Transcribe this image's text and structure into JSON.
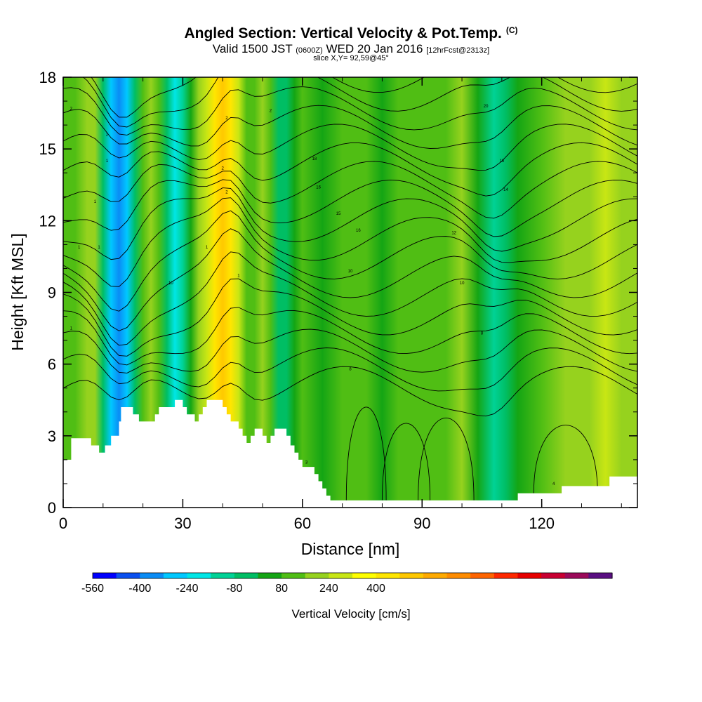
{
  "header": {
    "title": "Angled Section: Vertical Velocity & Pot.Temp.",
    "title_suffix": "(C)",
    "valid_prefix": "Valid 1500 JST",
    "valid_utc": "(0600Z)",
    "valid_date": "WED 20 Jan 2016",
    "forecast": "[12hrFcst@2313z]",
    "slice": "slice X,Y= 92,59@45°"
  },
  "chart_data": {
    "type": "heatmap",
    "xlabel": "Distance [nm]",
    "ylabel": "Height [Kft MSL]",
    "xlim": [
      0,
      144
    ],
    "ylim": [
      0,
      18
    ],
    "x_ticks": [
      0,
      30,
      60,
      90,
      120
    ],
    "y_ticks": [
      0,
      3,
      6,
      9,
      12,
      15,
      18
    ],
    "grid": false,
    "colorbar": {
      "label": "Vertical Velocity [cm/s]",
      "tick_labels": [
        "-560",
        "-400",
        "-240",
        "-80",
        "80",
        "240",
        "400"
      ],
      "colors": [
        "#0000ff",
        "#0a50f0",
        "#0a8cf5",
        "#00c8ff",
        "#00e6e6",
        "#00d296",
        "#00be64",
        "#14a514",
        "#50be14",
        "#96d21e",
        "#c8e614",
        "#ffff00",
        "#ffe600",
        "#ffc800",
        "#ffaa00",
        "#ff8c00",
        "#ff6400",
        "#ff2800",
        "#e60000",
        "#c80032",
        "#9b0a5a",
        "#5a0f82"
      ]
    },
    "shading_columns": [
      {
        "x": 0,
        "w": 40
      },
      {
        "x": 3,
        "w": 40
      },
      {
        "x": 6,
        "w": 80
      },
      {
        "x": 8,
        "w": 120
      },
      {
        "x": 10,
        "w": -150
      },
      {
        "x": 12,
        "w": -380
      },
      {
        "x": 14,
        "w": -460
      },
      {
        "x": 16,
        "w": -350
      },
      {
        "x": 18,
        "w": -150
      },
      {
        "x": 20,
        "w": 60
      },
      {
        "x": 22,
        "w": 150
      },
      {
        "x": 24,
        "w": 60
      },
      {
        "x": 26,
        "w": -120
      },
      {
        "x": 28,
        "w": -250
      },
      {
        "x": 30,
        "w": -200
      },
      {
        "x": 32,
        "w": -40
      },
      {
        "x": 34,
        "w": 120
      },
      {
        "x": 36,
        "w": 220
      },
      {
        "x": 38,
        "w": 330
      },
      {
        "x": 40,
        "w": 420
      },
      {
        "x": 42,
        "w": 330
      },
      {
        "x": 44,
        "w": 170
      },
      {
        "x": 46,
        "w": 70
      },
      {
        "x": 48,
        "w": 20
      },
      {
        "x": 50,
        "w": 90
      },
      {
        "x": 52,
        "w": 20
      },
      {
        "x": 54,
        "w": -90
      },
      {
        "x": 56,
        "w": -130
      },
      {
        "x": 58,
        "w": -40
      },
      {
        "x": 60,
        "w": 40
      },
      {
        "x": 65,
        "w": -60
      },
      {
        "x": 70,
        "w": 60
      },
      {
        "x": 76,
        "w": 30
      },
      {
        "x": 80,
        "w": -40
      },
      {
        "x": 84,
        "w": 60
      },
      {
        "x": 90,
        "w": 30
      },
      {
        "x": 96,
        "w": 50
      },
      {
        "x": 100,
        "w": 80
      },
      {
        "x": 104,
        "w": -60
      },
      {
        "x": 108,
        "w": -180
      },
      {
        "x": 111,
        "w": -140
      },
      {
        "x": 114,
        "w": -30
      },
      {
        "x": 120,
        "w": 60
      },
      {
        "x": 126,
        "w": 90
      },
      {
        "x": 132,
        "w": 130
      },
      {
        "x": 136,
        "w": 160
      },
      {
        "x": 140,
        "w": 120
      },
      {
        "x": 144,
        "w": 80
      }
    ],
    "terrain": [
      [
        0,
        2.0
      ],
      [
        2,
        2.0
      ],
      [
        2,
        2.9
      ],
      [
        7,
        2.9
      ],
      [
        7,
        2.6
      ],
      [
        9,
        2.6
      ],
      [
        9,
        2.3
      ],
      [
        10.5,
        2.3
      ],
      [
        10.5,
        2.6
      ],
      [
        12,
        2.6
      ],
      [
        12,
        3.0
      ],
      [
        14,
        3.0
      ],
      [
        14,
        3.6
      ],
      [
        14.5,
        3.6
      ],
      [
        14.5,
        4.2
      ],
      [
        17.5,
        4.2
      ],
      [
        17.5,
        3.9
      ],
      [
        19,
        3.9
      ],
      [
        19,
        3.6
      ],
      [
        23,
        3.6
      ],
      [
        23,
        3.9
      ],
      [
        24,
        3.9
      ],
      [
        24,
        4.2
      ],
      [
        28,
        4.2
      ],
      [
        28,
        4.5
      ],
      [
        30,
        4.5
      ],
      [
        30,
        4.2
      ],
      [
        31,
        4.2
      ],
      [
        31,
        3.9
      ],
      [
        33,
        3.9
      ],
      [
        33,
        3.6
      ],
      [
        34,
        3.6
      ],
      [
        34,
        3.9
      ],
      [
        35,
        3.9
      ],
      [
        35,
        4.2
      ],
      [
        36,
        4.2
      ],
      [
        36,
        4.5
      ],
      [
        40,
        4.5
      ],
      [
        40,
        4.2
      ],
      [
        41,
        4.2
      ],
      [
        41,
        3.9
      ],
      [
        42,
        3.9
      ],
      [
        42,
        3.6
      ],
      [
        44,
        3.6
      ],
      [
        44,
        3.3
      ],
      [
        45,
        3.3
      ],
      [
        45,
        3.0
      ],
      [
        46,
        3.0
      ],
      [
        46,
        2.7
      ],
      [
        47,
        2.7
      ],
      [
        47,
        3.0
      ],
      [
        48,
        3.0
      ],
      [
        48,
        3.3
      ],
      [
        50,
        3.3
      ],
      [
        50,
        3.0
      ],
      [
        51,
        3.0
      ],
      [
        51,
        2.7
      ],
      [
        52,
        2.7
      ],
      [
        52,
        3.0
      ],
      [
        53,
        3.0
      ],
      [
        53,
        3.3
      ],
      [
        56,
        3.3
      ],
      [
        56,
        3.0
      ],
      [
        57,
        3.0
      ],
      [
        57,
        2.6
      ],
      [
        58,
        2.6
      ],
      [
        58,
        2.3
      ],
      [
        59,
        2.3
      ],
      [
        59,
        2.0
      ],
      [
        60,
        2.0
      ],
      [
        60,
        1.7
      ],
      [
        63,
        1.7
      ],
      [
        63,
        1.4
      ],
      [
        64,
        1.4
      ],
      [
        64,
        1.1
      ],
      [
        65,
        1.1
      ],
      [
        65,
        0.8
      ],
      [
        66,
        0.8
      ],
      [
        66,
        0.5
      ],
      [
        67,
        0.5
      ],
      [
        67,
        0.3
      ],
      [
        114,
        0.3
      ],
      [
        114,
        0.6
      ],
      [
        125,
        0.6
      ],
      [
        125,
        0.9
      ],
      [
        137,
        0.9
      ],
      [
        137,
        1.3
      ],
      [
        144,
        1.3
      ]
    ],
    "contour_labels": [
      {
        "x": 2,
        "y": 16.7,
        "t": "2"
      },
      {
        "x": 11,
        "y": 15.6,
        "t": "2"
      },
      {
        "x": 11,
        "y": 14.5,
        "t": "1"
      },
      {
        "x": 8,
        "y": 12.8,
        "t": "1"
      },
      {
        "x": 4,
        "y": 10.9,
        "t": "1"
      },
      {
        "x": 9,
        "y": 10.9,
        "t": "1"
      },
      {
        "x": 2,
        "y": 7.5,
        "t": "1"
      },
      {
        "x": 27,
        "y": 9.4,
        "t": "10"
      },
      {
        "x": 36,
        "y": 10.9,
        "t": "1"
      },
      {
        "x": 41,
        "y": 16.3,
        "t": "2"
      },
      {
        "x": 40,
        "y": 14.2,
        "t": "2"
      },
      {
        "x": 41,
        "y": 13.2,
        "t": "2"
      },
      {
        "x": 44,
        "y": 9.7,
        "t": "1"
      },
      {
        "x": 52,
        "y": 16.6,
        "t": "2"
      },
      {
        "x": 63,
        "y": 14.6,
        "t": "18"
      },
      {
        "x": 64,
        "y": 13.4,
        "t": "16"
      },
      {
        "x": 69,
        "y": 12.3,
        "t": "15"
      },
      {
        "x": 74,
        "y": 11.6,
        "t": "16"
      },
      {
        "x": 72,
        "y": 9.9,
        "t": "10"
      },
      {
        "x": 72,
        "y": 5.8,
        "t": "8"
      },
      {
        "x": 61,
        "y": 1.9,
        "t": "3"
      },
      {
        "x": 106,
        "y": 16.8,
        "t": "20"
      },
      {
        "x": 110,
        "y": 14.5,
        "t": "16"
      },
      {
        "x": 111,
        "y": 13.3,
        "t": "14"
      },
      {
        "x": 98,
        "y": 11.5,
        "t": "12"
      },
      {
        "x": 100,
        "y": 9.4,
        "t": "10"
      },
      {
        "x": 105,
        "y": 7.3,
        "t": "8"
      },
      {
        "x": 123,
        "y": 1.0,
        "t": "4"
      }
    ]
  }
}
